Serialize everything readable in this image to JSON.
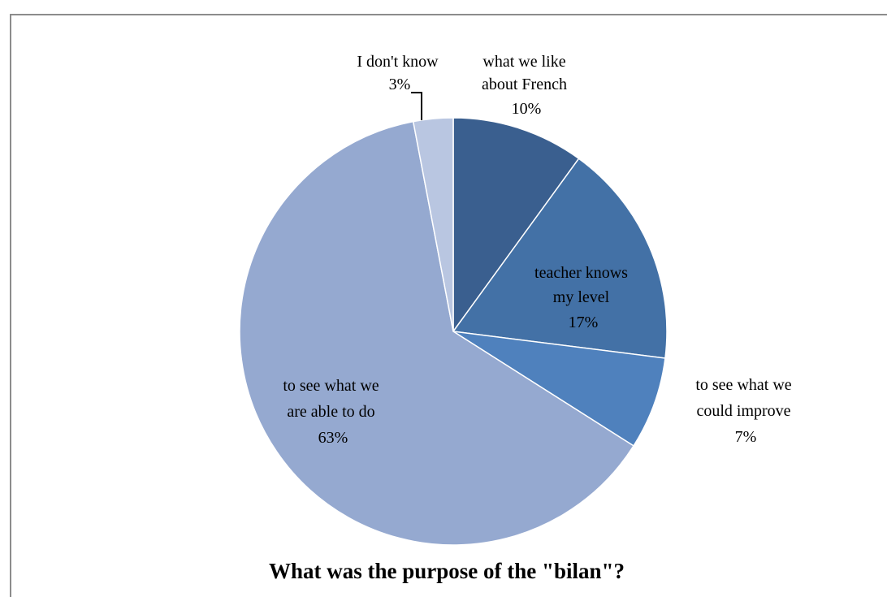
{
  "chart_data": {
    "type": "pie",
    "title": "What was the purpose of the \"bilan\"?",
    "slices": [
      {
        "label_lines": [
          "what we like",
          "about French"
        ],
        "pct_text": "10%",
        "value": 10,
        "color": "#3a5f8f"
      },
      {
        "label_lines": [
          "teacher knows",
          "my level"
        ],
        "pct_text": "17%",
        "value": 17,
        "color": "#4371a6"
      },
      {
        "label_lines": [
          "to see what we",
          "could improve"
        ],
        "pct_text": "7%",
        "value": 7,
        "color": "#4f81bd"
      },
      {
        "label_lines": [
          "to see what we",
          "are able to do"
        ],
        "pct_text": "63%",
        "value": 63,
        "color": "#95a9d0"
      },
      {
        "label_lines": [
          "I don't know"
        ],
        "pct_text": "3%",
        "value": 3,
        "color": "#b9c6e1"
      }
    ]
  }
}
